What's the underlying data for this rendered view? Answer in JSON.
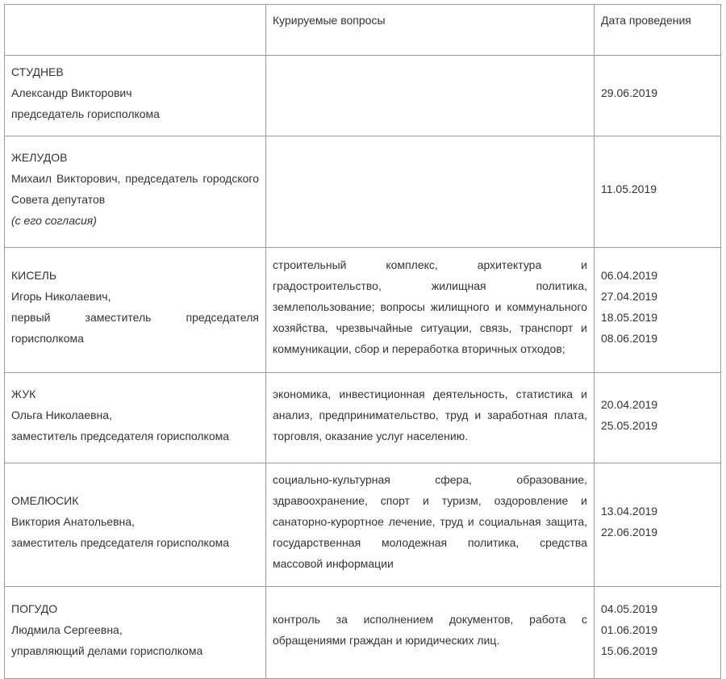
{
  "header": {
    "col1": "",
    "col2": "Курируемые вопросы",
    "col3": "Дата проведения"
  },
  "rows": [
    {
      "surname": "СТУДНЕВ",
      "name": "Александр Викторович",
      "position": "председатель горисполкома",
      "note": "",
      "issues": "",
      "dates": [
        "29.06.2019"
      ]
    },
    {
      "surname": "ЖЕЛУДОВ",
      "name": "Михаил Викторович, председатель городского Совета депутатов",
      "position": "",
      "note": "(с его согласия)",
      "issues": "",
      "dates": [
        "11.05.2019"
      ]
    },
    {
      "surname": "КИСЕЛЬ",
      "name": "Игорь Николаевич,",
      "position": "первый заместитель председателя горисполкома",
      "note": "",
      "issues": "строительный комплекс, архитектура и градостроительство, жилищная политика, землепользование; вопросы жилищного и коммунального хозяйства, чрезвычайные ситуации, связь, транспорт и коммуникации, сбор и переработка вторичных отходов;",
      "dates": [
        "06.04.2019",
        "27.04.2019",
        "18.05.2019",
        "08.06.2019"
      ]
    },
    {
      "surname": "ЖУК",
      "name": "Ольга Николаевна,",
      "position": "заместитель председателя горисполкома",
      "note": "",
      "issues": "экономика, инвестиционная деятельность, статистика и анализ, предпринимательство, труд и заработная плата, торговля, оказание услуг населению.",
      "dates": [
        "20.04.2019",
        "25.05.2019"
      ]
    },
    {
      "surname": "ОМЕЛЮСИК",
      "name": "Виктория Анатольевна,",
      "position": "заместитель председателя горисполкома",
      "note": "",
      "issues": "социально-культурная сфера, образование, здравоохранение, спорт и туризм, оздоровление и санаторно-курортное лечение, труд и социальная защита, государственная молодежная политика, средства массовой информации",
      "dates": [
        "13.04.2019",
        "22.06.2019"
      ]
    },
    {
      "surname": "ПОГУДО",
      "name": "Людмила Сергеевна,",
      "position": "управляющий делами горисполкома",
      "note": "",
      "issues": "контроль за исполнением документов, работа с обращениями граждан и юридических лиц.",
      "dates": [
        "04.05.2019",
        "01.06.2019",
        "15.06.2019"
      ]
    }
  ]
}
